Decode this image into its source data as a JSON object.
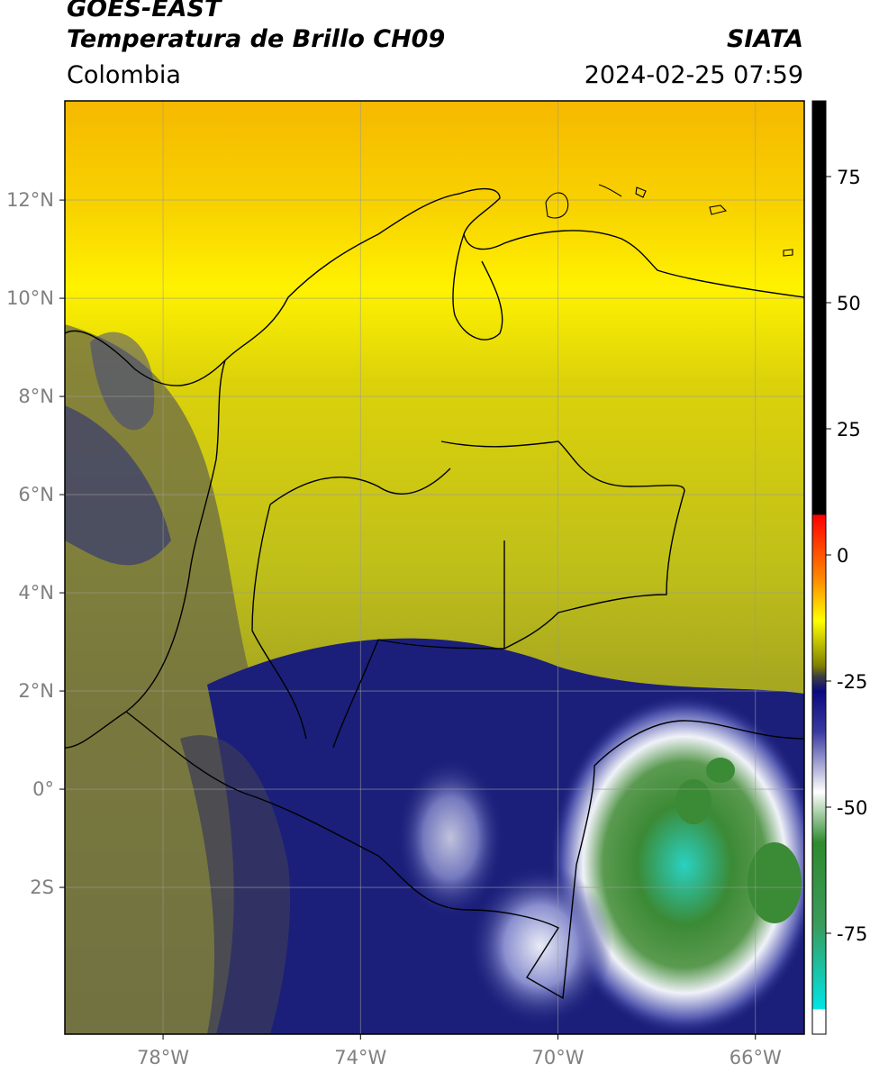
{
  "header": {
    "satellite": "GOES-EAST",
    "product": "Temperatura de Brillo CH09",
    "organization": "SIATA",
    "region": "Colombia",
    "timestamp": "2024-02-25 07:59"
  },
  "map": {
    "lon_range": [
      -79.99,
      -65.01
    ],
    "lat_range": [
      -4.99,
      14.02
    ],
    "lat_ticks": [
      {
        "value": 12,
        "label": "12°N"
      },
      {
        "value": 10,
        "label": "10°N"
      },
      {
        "value": 8,
        "label": "8°N"
      },
      {
        "value": 6,
        "label": "6°N"
      },
      {
        "value": 4,
        "label": "4°N"
      },
      {
        "value": 2,
        "label": "2°N"
      },
      {
        "value": 0,
        "label": "0°"
      },
      {
        "value": -2,
        "label": "2S"
      }
    ],
    "lon_ticks": [
      {
        "value": -78,
        "label": "78°W"
      },
      {
        "value": -74,
        "label": "74°W"
      },
      {
        "value": -70,
        "label": "70°W"
      },
      {
        "value": -66,
        "label": "66°W"
      }
    ],
    "gridlines": true,
    "colors": {
      "warm": "#f5c400",
      "mid": "#c9bc12",
      "cool": "#5a5a4a",
      "cold": "#1b1f7a",
      "very_cold": "#e9ecf5",
      "coldest": "#3b8a35",
      "extreme": "#2ad1c2"
    }
  },
  "colorbar": {
    "range": [
      -95,
      90
    ],
    "ticks": [
      {
        "value": 75,
        "label": "75"
      },
      {
        "value": 50,
        "label": "50"
      },
      {
        "value": 25,
        "label": "25"
      },
      {
        "value": 0,
        "label": "0"
      },
      {
        "value": -25,
        "label": "-25"
      },
      {
        "value": -50,
        "label": "-50"
      },
      {
        "value": -75,
        "label": "-75"
      }
    ],
    "stops": [
      {
        "value": 90,
        "color": "#000000"
      },
      {
        "value": 8,
        "color": "#000000"
      },
      {
        "value": 7.9,
        "color": "#ff0000"
      },
      {
        "value": -5,
        "color": "#ff8c00"
      },
      {
        "value": -13,
        "color": "#ffff00"
      },
      {
        "value": -22,
        "color": "#808000"
      },
      {
        "value": -24,
        "color": "#404040"
      },
      {
        "value": -27,
        "color": "#0a0a80"
      },
      {
        "value": -35,
        "color": "#3a3aa0"
      },
      {
        "value": -47,
        "color": "#ffffff"
      },
      {
        "value": -57,
        "color": "#2e8b2e"
      },
      {
        "value": -73,
        "color": "#3a9a5a"
      },
      {
        "value": -90,
        "color": "#00e5e5"
      },
      {
        "value": -90.1,
        "color": "#ffffff"
      },
      {
        "value": -95,
        "color": "#ffffff"
      }
    ]
  }
}
